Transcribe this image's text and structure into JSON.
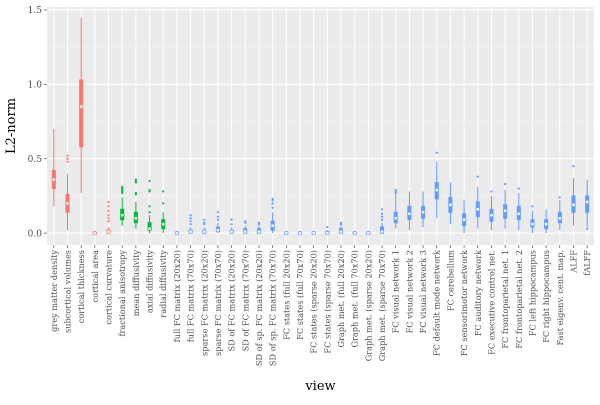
{
  "chart_data": {
    "type": "boxplot",
    "xlabel": "view",
    "ylabel": "L2-norm",
    "ylim": [
      -0.08,
      1.52
    ],
    "yticks": [
      0.0,
      0.5,
      1.0,
      1.5
    ],
    "ytick_labels": [
      "0.0",
      "0.5",
      "1.0",
      "1.5"
    ],
    "grid": true,
    "legend": "none",
    "categories": [
      "grey matter density",
      "subcortical volumes",
      "cortical thickness",
      "cortical area",
      "cortical curvature",
      "fractional anisotropy",
      "mean diffusivity",
      "axial diffusivity",
      "radial diffusivity",
      "full FC matrix (20x20)",
      "full FC matrix (70x70)",
      "sparse FC matrix (20x20)",
      "sparse FC matrix (70x70)",
      "SD of FC matrix (20x20)",
      "SD of FC matrix (70x70)",
      "SD of sp. FC matrix (20x20)",
      "SD of sp. FC matrix (70x70)",
      "FC states (full 20x20)",
      "FC states (full 70x70)",
      "FC states (sparse 20x20)",
      "FC states (sparse 70x70)",
      "Graph met. (full 20x20)",
      "Graph met. (full 70x70)",
      "Graph met. (sparse 20x20)",
      "Graph met. (sparse 70x70)",
      "FC visual network 1",
      "FC visual network 2",
      "FC visual network 3",
      "FC default mode network",
      "FC cerebellum",
      "FC sensorimotor network",
      "FC auditory network",
      "FC executive control net.",
      "FC frontoparietal net. 1",
      "FC frontoparietal net. 2",
      "FC left hippocampus",
      "FC right hippocampus",
      "Fast eigenv. cent. map.",
      "ALFF",
      "fALFF"
    ],
    "series_colors": [
      "#F8766D",
      "#00BA38",
      "#619CFF"
    ],
    "category_color_index": [
      0,
      0,
      0,
      0,
      0,
      1,
      1,
      1,
      1,
      2,
      2,
      2,
      2,
      2,
      2,
      2,
      2,
      2,
      2,
      2,
      2,
      2,
      2,
      2,
      2,
      2,
      2,
      2,
      2,
      2,
      2,
      2,
      2,
      2,
      2,
      2,
      2,
      2,
      2,
      2
    ],
    "boxes": [
      {
        "min": 0.18,
        "q1": 0.3,
        "median": 0.36,
        "q3": 0.42,
        "max": 0.7,
        "outliers": []
      },
      {
        "min": 0.02,
        "q1": 0.14,
        "median": 0.2,
        "q3": 0.26,
        "max": 0.4,
        "outliers": [
          0.48,
          0.5,
          0.52
        ]
      },
      {
        "min": 0.27,
        "q1": 0.58,
        "median": 0.85,
        "q3": 1.03,
        "max": 1.45,
        "outliers": []
      },
      {
        "min": 0.0,
        "q1": 0.0,
        "median": 0.0,
        "q3": 0.0,
        "max": 0.0,
        "outliers": []
      },
      {
        "min": 0.0,
        "q1": 0.0,
        "median": 0.01,
        "q3": 0.02,
        "max": 0.04,
        "outliers": [
          0.08,
          0.1,
          0.12,
          0.15,
          0.18,
          0.21
        ]
      },
      {
        "min": 0.05,
        "q1": 0.09,
        "median": 0.12,
        "q3": 0.16,
        "max": 0.24,
        "outliers": [
          0.27,
          0.28,
          0.29,
          0.3,
          0.31
        ]
      },
      {
        "min": 0.03,
        "q1": 0.07,
        "median": 0.1,
        "q3": 0.14,
        "max": 0.21,
        "outliers": [
          0.26,
          0.27,
          0.34,
          0.35,
          0.36
        ]
      },
      {
        "min": 0.0,
        "q1": 0.02,
        "median": 0.03,
        "q3": 0.07,
        "max": 0.12,
        "outliers": [
          0.14,
          0.18,
          0.28,
          0.29,
          0.35
        ]
      },
      {
        "min": 0.0,
        "q1": 0.03,
        "median": 0.06,
        "q3": 0.09,
        "max": 0.14,
        "outliers": [
          0.2,
          0.28
        ]
      },
      {
        "min": 0.0,
        "q1": 0.0,
        "median": 0.0,
        "q3": 0.0,
        "max": 0.0,
        "outliers": []
      },
      {
        "min": 0.0,
        "q1": 0.0,
        "median": 0.01,
        "q3": 0.02,
        "max": 0.04,
        "outliers": [
          0.06,
          0.08,
          0.1,
          0.12
        ]
      },
      {
        "min": 0.0,
        "q1": 0.0,
        "median": 0.01,
        "q3": 0.02,
        "max": 0.04,
        "outliers": [
          0.06,
          0.07,
          0.09
        ]
      },
      {
        "min": 0.0,
        "q1": 0.01,
        "median": 0.02,
        "q3": 0.04,
        "max": 0.07,
        "outliers": [
          0.09,
          0.11,
          0.14
        ]
      },
      {
        "min": 0.0,
        "q1": 0.0,
        "median": 0.01,
        "q3": 0.02,
        "max": 0.04,
        "outliers": [
          0.06,
          0.09
        ]
      },
      {
        "min": 0.0,
        "q1": 0.0,
        "median": 0.01,
        "q3": 0.03,
        "max": 0.05,
        "outliers": [
          0.07,
          0.08
        ]
      },
      {
        "min": 0.0,
        "q1": 0.0,
        "median": 0.01,
        "q3": 0.03,
        "max": 0.05,
        "outliers": [
          0.06,
          0.07
        ]
      },
      {
        "min": 0.0,
        "q1": 0.02,
        "median": 0.05,
        "q3": 0.08,
        "max": 0.14,
        "outliers": [
          0.17,
          0.2,
          0.22,
          0.23
        ]
      },
      {
        "min": 0.0,
        "q1": 0.0,
        "median": 0.0,
        "q3": 0.0,
        "max": 0.0,
        "outliers": []
      },
      {
        "min": 0.0,
        "q1": 0.0,
        "median": 0.0,
        "q3": 0.0,
        "max": 0.0,
        "outliers": []
      },
      {
        "min": 0.0,
        "q1": 0.0,
        "median": 0.0,
        "q3": 0.0,
        "max": 0.0,
        "outliers": []
      },
      {
        "min": 0.0,
        "q1": 0.0,
        "median": 0.0,
        "q3": 0.01,
        "max": 0.02,
        "outliers": [
          0.04
        ]
      },
      {
        "min": 0.0,
        "q1": 0.0,
        "median": 0.01,
        "q3": 0.03,
        "max": 0.05,
        "outliers": [
          0.06,
          0.07
        ]
      },
      {
        "min": 0.0,
        "q1": 0.0,
        "median": 0.0,
        "q3": 0.0,
        "max": 0.0,
        "outliers": []
      },
      {
        "min": 0.0,
        "q1": 0.0,
        "median": 0.0,
        "q3": 0.0,
        "max": 0.0,
        "outliers": []
      },
      {
        "min": 0.0,
        "q1": 0.0,
        "median": 0.01,
        "q3": 0.04,
        "max": 0.07,
        "outliers": [
          0.09,
          0.11,
          0.13,
          0.16
        ]
      },
      {
        "min": 0.03,
        "q1": 0.07,
        "median": 0.1,
        "q3": 0.14,
        "max": 0.26,
        "outliers": [
          0.27,
          0.28,
          0.29
        ]
      },
      {
        "min": 0.02,
        "q1": 0.09,
        "median": 0.13,
        "q3": 0.18,
        "max": 0.28,
        "outliers": []
      },
      {
        "min": 0.04,
        "q1": 0.1,
        "median": 0.14,
        "q3": 0.18,
        "max": 0.28,
        "outliers": []
      },
      {
        "min": 0.1,
        "q1": 0.23,
        "median": 0.29,
        "q3": 0.34,
        "max": 0.48,
        "outliers": [
          0.54
        ]
      },
      {
        "min": 0.06,
        "q1": 0.14,
        "median": 0.19,
        "q3": 0.24,
        "max": 0.34,
        "outliers": []
      },
      {
        "min": 0.0,
        "q1": 0.05,
        "median": 0.09,
        "q3": 0.13,
        "max": 0.22,
        "outliers": []
      },
      {
        "min": 0.03,
        "q1": 0.11,
        "median": 0.16,
        "q3": 0.21,
        "max": 0.31,
        "outliers": [
          0.38
        ]
      },
      {
        "min": 0.02,
        "q1": 0.08,
        "median": 0.12,
        "q3": 0.16,
        "max": 0.25,
        "outliers": [
          0.28
        ]
      },
      {
        "min": 0.03,
        "q1": 0.1,
        "median": 0.15,
        "q3": 0.19,
        "max": 0.29,
        "outliers": [
          0.33
        ]
      },
      {
        "min": 0.02,
        "q1": 0.09,
        "median": 0.13,
        "q3": 0.18,
        "max": 0.27,
        "outliers": [
          0.3
        ]
      },
      {
        "min": 0.0,
        "q1": 0.04,
        "median": 0.06,
        "q3": 0.09,
        "max": 0.15,
        "outliers": [
          0.18
        ]
      },
      {
        "min": 0.0,
        "q1": 0.03,
        "median": 0.06,
        "q3": 0.09,
        "max": 0.16,
        "outliers": []
      },
      {
        "min": 0.02,
        "q1": 0.07,
        "median": 0.1,
        "q3": 0.14,
        "max": 0.22,
        "outliers": [
          0.24
        ]
      },
      {
        "min": 0.05,
        "q1": 0.14,
        "median": 0.19,
        "q3": 0.25,
        "max": 0.37,
        "outliers": [
          0.45
        ]
      },
      {
        "min": 0.04,
        "q1": 0.14,
        "median": 0.21,
        "q3": 0.25,
        "max": 0.36,
        "outliers": [
          0.03
        ]
      }
    ]
  }
}
